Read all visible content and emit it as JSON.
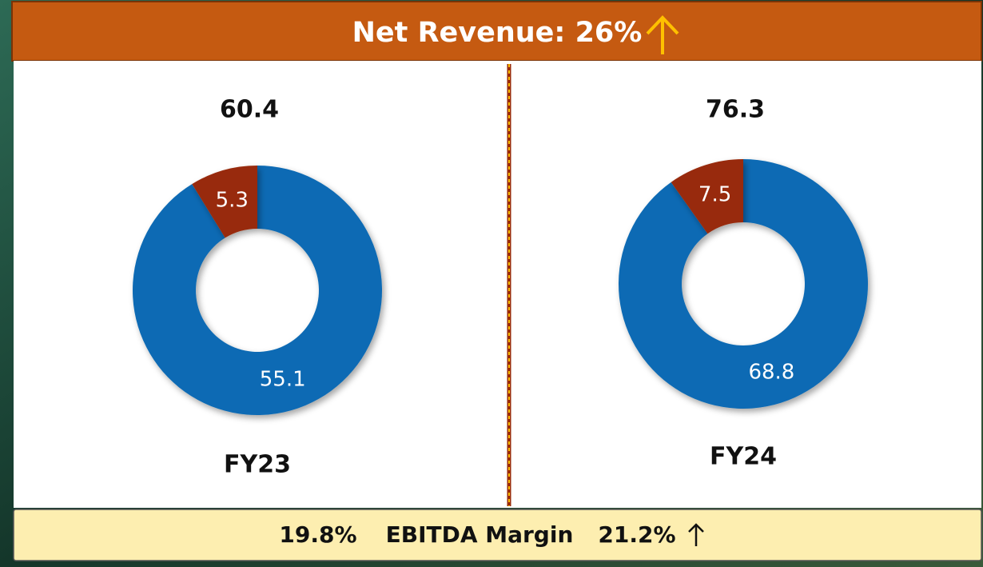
{
  "header": {
    "title": "Net Revenue: 26%"
  },
  "chart_data": [
    {
      "type": "donut",
      "title": "60.4",
      "label": "FY23",
      "values": [
        55.1,
        5.3
      ],
      "colors": [
        "#0a6bb4",
        "#982b09"
      ]
    },
    {
      "type": "donut",
      "title": "76.3",
      "label": "FY24",
      "values": [
        68.8,
        7.5
      ],
      "colors": [
        "#0a6bb4",
        "#982b09"
      ]
    }
  ],
  "footer": {
    "left": "19.8%",
    "middle": "EBITDA Margin",
    "right": "21.2%"
  }
}
